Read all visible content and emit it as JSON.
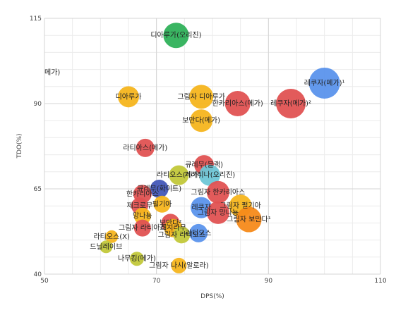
{
  "chart_data": {
    "type": "scatter",
    "xlabel": "DPS(%)",
    "ylabel": "TDO(%)",
    "xlim": [
      50,
      110
    ],
    "ylim": [
      40,
      115
    ],
    "xticks": [
      50,
      70,
      90,
      110
    ],
    "yticks": [
      40,
      65,
      90,
      115
    ],
    "grid": true,
    "colors": {
      "red": "#e05252",
      "yellow": "#f5b51e",
      "green": "#2fb15a",
      "blue": "#5b93ec",
      "navy": "#4357b8",
      "olive": "#c2c83a",
      "teal": "#6ec6d6",
      "orange": "#f68a1a"
    },
    "points": [
      {
        "label": "디아루가(오리진)",
        "x": 73.5,
        "y": 110,
        "r": 18,
        "color": "green"
      },
      {
        "label": "레쿠자(메가)¹",
        "x": 100,
        "y": 96,
        "r": 22,
        "color": "blue"
      },
      {
        "label": "레쿠자(메가)²",
        "x": 94,
        "y": 90,
        "r": 21,
        "color": "red"
      },
      {
        "label": "디아루가",
        "x": 65,
        "y": 92,
        "r": 15,
        "color": "yellow"
      },
      {
        "label": "그림자 디아루가",
        "x": 78,
        "y": 92,
        "r": 17,
        "color": "yellow"
      },
      {
        "label": "한카리아스(메가)",
        "x": 84.5,
        "y": 90,
        "r": 18,
        "color": "red"
      },
      {
        "label": "보만다(메가)",
        "x": 78,
        "y": 85,
        "r": 16,
        "color": "yellow"
      },
      {
        "label": "라티아스(메가)",
        "x": 68,
        "y": 77,
        "r": 13,
        "color": "red"
      },
      {
        "label": "큐레무(블랙)",
        "x": 78.5,
        "y": 72,
        "r": 14,
        "color": "red"
      },
      {
        "label": "라티오스(메가)",
        "x": 74,
        "y": 69,
        "r": 14,
        "color": "olive"
      },
      {
        "label": "기라티나(오리진)",
        "x": 79.5,
        "y": 69,
        "r": 15,
        "color": "teal"
      },
      {
        "label": "큐레무(화이트)",
        "x": 70.5,
        "y": 65,
        "r": 13,
        "color": "navy"
      },
      {
        "label": "그림자 한카리아스",
        "x": 81,
        "y": 64,
        "r": 16,
        "color": "red"
      },
      {
        "label": "한카리아스",
        "x": 67.5,
        "y": 63.5,
        "r": 13,
        "color": "red"
      },
      {
        "label": "제크로무",
        "x": 67,
        "y": 60,
        "r": 12,
        "color": "red"
      },
      {
        "label": "펄기아",
        "x": 71,
        "y": 60.5,
        "r": 12,
        "color": "yellow"
      },
      {
        "label": "그림자 펄기아",
        "x": 85,
        "y": 60,
        "r": 16,
        "color": "yellow"
      },
      {
        "label": "레쿠자",
        "x": 78,
        "y": 59.5,
        "r": 15,
        "color": "blue"
      },
      {
        "label": "그림자 망나뇽",
        "x": 81,
        "y": 58,
        "r": 16,
        "color": "red"
      },
      {
        "label": "망나뇽",
        "x": 67.5,
        "y": 57,
        "r": 12,
        "color": "yellow"
      },
      {
        "label": "그림자 보만다¹",
        "x": 86.5,
        "y": 56,
        "r": 18,
        "color": "orange"
      },
      {
        "label": "보만다²",
        "x": 72.5,
        "y": 55,
        "r": 13,
        "color": "red"
      },
      {
        "label": "그림자 라티아스",
        "x": 67.5,
        "y": 53.5,
        "r": 12,
        "color": "red"
      },
      {
        "label": "레시라무",
        "x": 73,
        "y": 53.5,
        "r": 13,
        "color": "yellow"
      },
      {
        "label": "그림자 라티오스",
        "x": 74.5,
        "y": 51.5,
        "r": 12,
        "color": "olive"
      },
      {
        "label": "라티오스",
        "x": 77.5,
        "y": 52,
        "r": 13,
        "color": "blue"
      },
      {
        "label": "라티오스(X)",
        "x": 62,
        "y": 51,
        "r": 9,
        "color": "yellow"
      },
      {
        "label": "드닐레이브",
        "x": 61,
        "y": 48,
        "r": 9,
        "color": "olive"
      },
      {
        "label": "나무킹(메가)",
        "x": 66.5,
        "y": 44.5,
        "r": 10,
        "color": "olive"
      },
      {
        "label": "그림자 나시(알로라)",
        "x": 74,
        "y": 42.5,
        "r": 11,
        "color": "yellow"
      }
    ]
  },
  "clipped_label_fragment": "메가)"
}
